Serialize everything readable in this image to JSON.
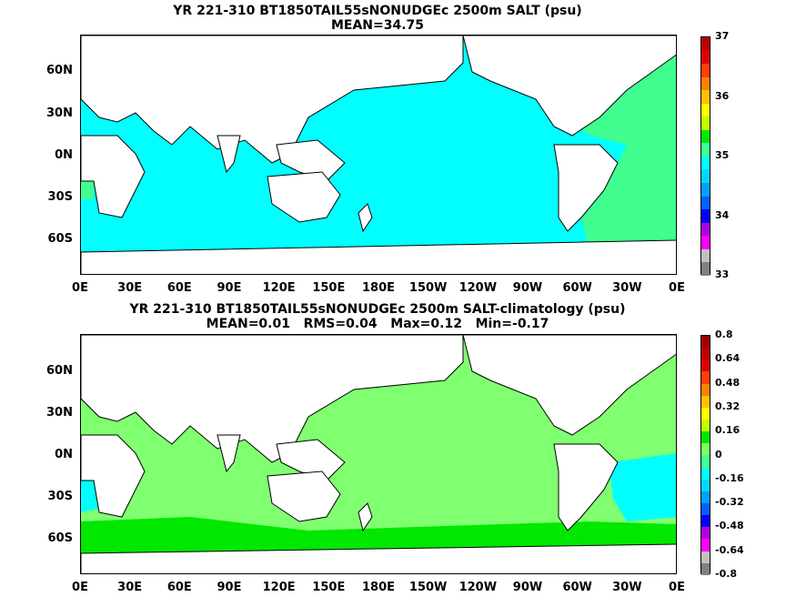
{
  "panels": [
    {
      "title_line1": "YR 221-310 BT1850TAIL55sNONUDGEc 2500m SALT (psu)",
      "title_line2": "MEAN=34.75",
      "colorbar_labels": [
        "37",
        "36",
        "35",
        "34",
        "33"
      ],
      "colorbar_colors": [
        "#808080",
        "#c0c0c0",
        "#ff00ff",
        "#b000e0",
        "#0000ff",
        "#0060ff",
        "#00a0ff",
        "#00d8ff",
        "#00ffff",
        "#40ff90",
        "#00e800",
        "#c0ff00",
        "#ffff00",
        "#ffc000",
        "#ff8000",
        "#ff4000",
        "#e00000",
        "#c00000"
      ],
      "fill_colors": {
        "ocean": "#00ffff",
        "atlantic": "#40ff90",
        "land": "#ffffff",
        "coast": "#000000"
      }
    },
    {
      "title_line1": "YR 221-310 BT1850TAIL55sNONUDGEc 2500m SALT-climatology (psu)",
      "title_line2": "MEAN=0.01   RMS=0.04   Max=0.12   Min=-0.17",
      "colorbar_labels": [
        "0.8",
        "0.64",
        "0.48",
        "0.32",
        "0.16",
        "0",
        "-0.16",
        "-0.32",
        "-0.48",
        "-0.64",
        "-0.8"
      ],
      "colorbar_colors": [
        "#808080",
        "#c0c0c0",
        "#ff00ff",
        "#b000e0",
        "#0000ff",
        "#0060ff",
        "#00a0ff",
        "#00d8ff",
        "#00ffff",
        "#40ff90",
        "#80ff60",
        "#00e800",
        "#c0ff00",
        "#ffff00",
        "#ffc000",
        "#ff8000",
        "#ff4000",
        "#e00000",
        "#c00000",
        "#a00000"
      ],
      "fill_colors": {
        "ocean": "#80ff70",
        "cyan": "#00ffff",
        "green": "#00e800",
        "land": "#ffffff",
        "coast": "#000000"
      }
    }
  ],
  "y_axis": [
    "60N",
    "30N",
    "0N",
    "30S",
    "60S"
  ],
  "x_axis": [
    "0E",
    "30E",
    "60E",
    "90E",
    "120E",
    "150E",
    "180E",
    "150W",
    "120W",
    "90W",
    "60W",
    "30W",
    "0E"
  ]
}
